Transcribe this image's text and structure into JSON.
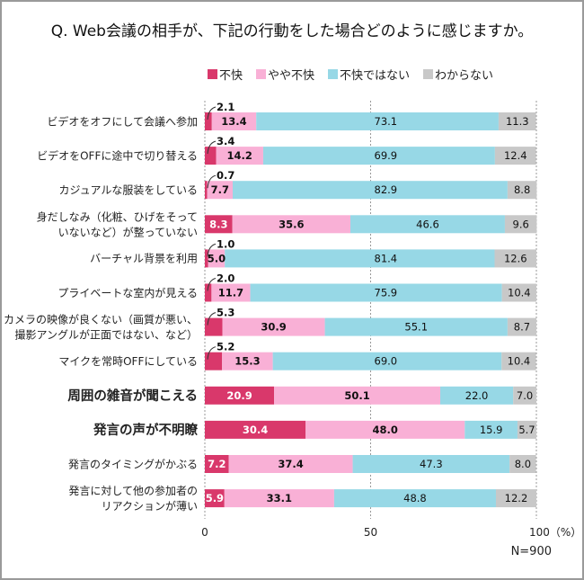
{
  "chart_data": {
    "type": "bar",
    "orientation": "horizontal",
    "stacked": true,
    "title": "Q. Web会議の相手が、下記の行動をした場合どのように感じますか。",
    "xlabel": "",
    "ylabel": "",
    "xlim": [
      0,
      100
    ],
    "x_ticks": [
      "0",
      "50",
      "100（%）"
    ],
    "x_tick_values": [
      0,
      50,
      100
    ],
    "grid": true,
    "legend_position": "top",
    "sample_size": "N=900",
    "categories": [
      "ビデオをオフにして会議へ参加",
      "ビデオをOFFに途中で切り替える",
      "カジュアルな服装をしている",
      "身だしなみ（化粧、ひげをそって\nいないなど）が整っていない",
      "バーチャル背景を利用",
      "プライベートな室内が見える",
      "カメラの映像が良くない（画質が悪い、\n撮影アングルが正面ではない、など）",
      "マイクを常時OFFにしている",
      "周囲の雑音が聞こえる",
      "発言の声が不明瞭",
      "発言のタイミングがかぶる",
      "発言に対して他の参加者の\nリアクションが薄い"
    ],
    "emphasized_categories": [
      8,
      9
    ],
    "series": [
      {
        "name": "不快",
        "color": "#D9386B",
        "values": [
          2.1,
          3.4,
          0.7,
          8.3,
          1.0,
          2.0,
          5.3,
          5.2,
          20.9,
          30.4,
          7.2,
          5.9
        ]
      },
      {
        "name": "やや不快",
        "color": "#F9B0D6",
        "values": [
          13.4,
          14.2,
          7.7,
          35.6,
          5.0,
          11.7,
          30.9,
          15.3,
          50.1,
          48.0,
          37.4,
          33.1
        ]
      },
      {
        "name": "不快ではない",
        "color": "#97D8E6",
        "values": [
          73.1,
          69.9,
          82.9,
          46.6,
          81.4,
          75.9,
          55.1,
          69.0,
          22.0,
          15.9,
          47.3,
          48.8
        ]
      },
      {
        "name": "わからない",
        "color": "#C8C8C8",
        "values": [
          11.3,
          12.4,
          8.8,
          9.6,
          12.6,
          10.4,
          8.7,
          10.4,
          7.0,
          5.7,
          8.0,
          12.2
        ]
      }
    ],
    "callout_labels_above_bar": [
      0,
      1,
      2,
      4,
      5,
      6,
      7
    ]
  }
}
